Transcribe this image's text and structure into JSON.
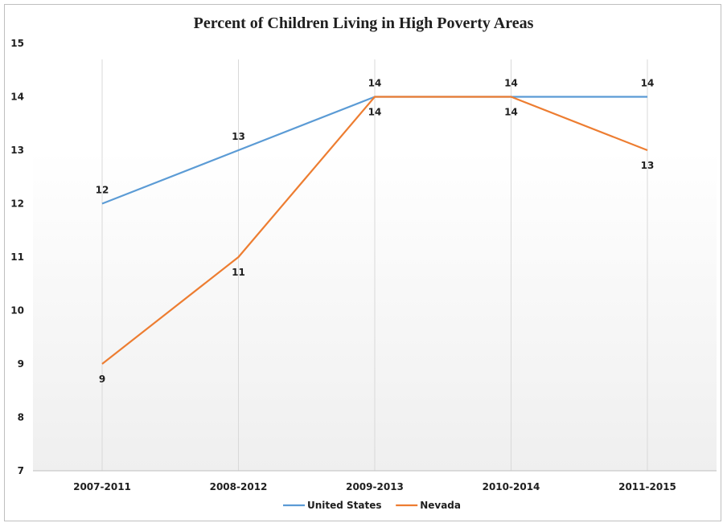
{
  "chart_data": {
    "type": "line",
    "title": "Percent of Children Living in High Poverty Areas",
    "categories": [
      "2007-2011",
      "2008-2012",
      "2009-2013",
      "2010-2014",
      "2011-2015"
    ],
    "series": [
      {
        "name": "United States",
        "color": "#5b9bd5",
        "values": [
          12,
          13,
          14,
          14,
          14
        ]
      },
      {
        "name": "Nevada",
        "color": "#ed7d31",
        "values": [
          9,
          11,
          14,
          14,
          13
        ]
      }
    ],
    "ylim": [
      7,
      15
    ],
    "yticks": [
      7,
      8,
      9,
      10,
      11,
      12,
      13,
      14,
      15
    ],
    "xlabel": "",
    "ylabel": "",
    "grid": "vertical",
    "legend_position": "bottom",
    "data_labels": true
  }
}
